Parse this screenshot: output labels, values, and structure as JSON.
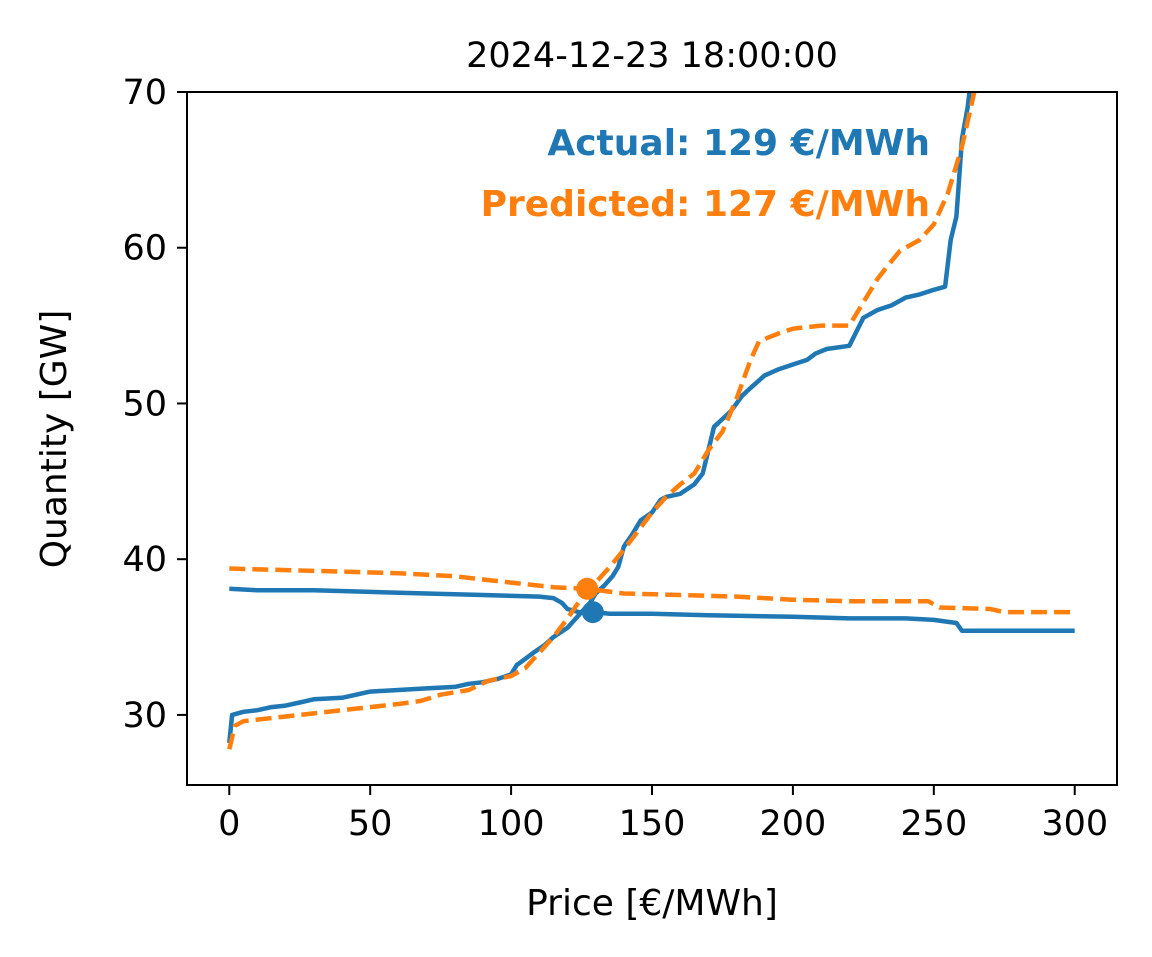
{
  "chart_data": {
    "type": "line",
    "title": "2024-12-23 18:00:00",
    "xlabel": "Price [€/MWh]",
    "ylabel": "Quantity [GW]",
    "xlim": [
      -15,
      315
    ],
    "ylim": [
      25.5,
      70
    ],
    "xticks": [
      0,
      50,
      100,
      150,
      200,
      250,
      300
    ],
    "yticks": [
      30,
      40,
      50,
      60,
      70
    ],
    "grid": false,
    "annotations": [
      {
        "text": "Actual: 129 €/MWh",
        "color": "#1f77b4"
      },
      {
        "text": "Predicted: 127 €/MWh",
        "color": "#ff7f0e"
      }
    ],
    "series": [
      {
        "role": "actual-supply",
        "color": "#1f77b4",
        "style": "solid",
        "points": [
          [
            0,
            28.2
          ],
          [
            1,
            30
          ],
          [
            5,
            30.2
          ],
          [
            10,
            30.3
          ],
          [
            15,
            30.5
          ],
          [
            20,
            30.6
          ],
          [
            25,
            30.8
          ],
          [
            30,
            31
          ],
          [
            40,
            31.1
          ],
          [
            45,
            31.3
          ],
          [
            50,
            31.5
          ],
          [
            60,
            31.6
          ],
          [
            70,
            31.7
          ],
          [
            80,
            31.8
          ],
          [
            85,
            32
          ],
          [
            90,
            32.1
          ],
          [
            95,
            32.3
          ],
          [
            100,
            32.6
          ],
          [
            102,
            33.2
          ],
          [
            105,
            33.6
          ],
          [
            108,
            34
          ],
          [
            112,
            34.5
          ],
          [
            115,
            35
          ],
          [
            120,
            35.6
          ],
          [
            123,
            36.2
          ],
          [
            126,
            36.8
          ],
          [
            128,
            37.2
          ],
          [
            130,
            37.8
          ],
          [
            133,
            38.3
          ],
          [
            136,
            38.9
          ],
          [
            138,
            39.5
          ],
          [
            140,
            40.8
          ],
          [
            143,
            41.6
          ],
          [
            146,
            42.5
          ],
          [
            150,
            43
          ],
          [
            153,
            43.8
          ],
          [
            155,
            44
          ],
          [
            160,
            44.2
          ],
          [
            165,
            44.8
          ],
          [
            168,
            45.5
          ],
          [
            170,
            47
          ],
          [
            172,
            48.5
          ],
          [
            175,
            49
          ],
          [
            178,
            49.5
          ],
          [
            182,
            50.5
          ],
          [
            185,
            51
          ],
          [
            190,
            51.8
          ],
          [
            195,
            52.2
          ],
          [
            200,
            52.5
          ],
          [
            205,
            52.8
          ],
          [
            208,
            53.2
          ],
          [
            212,
            53.5
          ],
          [
            220,
            53.7
          ],
          [
            225,
            55.5
          ],
          [
            230,
            56
          ],
          [
            235,
            56.3
          ],
          [
            240,
            56.8
          ],
          [
            245,
            57
          ],
          [
            250,
            57.3
          ],
          [
            254,
            57.5
          ],
          [
            256,
            60.5
          ],
          [
            258,
            62
          ],
          [
            260,
            67
          ],
          [
            262,
            69
          ],
          [
            264,
            72
          ]
        ]
      },
      {
        "role": "actual-demand",
        "color": "#1f77b4",
        "style": "solid",
        "points": [
          [
            0,
            38.1
          ],
          [
            10,
            38
          ],
          [
            30,
            38
          ],
          [
            50,
            37.9
          ],
          [
            70,
            37.8
          ],
          [
            90,
            37.7
          ],
          [
            110,
            37.6
          ],
          [
            115,
            37.5
          ],
          [
            118,
            37.2
          ],
          [
            120,
            36.8
          ],
          [
            124,
            36.6
          ],
          [
            129,
            36.6
          ],
          [
            135,
            36.5
          ],
          [
            150,
            36.5
          ],
          [
            170,
            36.4
          ],
          [
            200,
            36.3
          ],
          [
            220,
            36.2
          ],
          [
            240,
            36.2
          ],
          [
            250,
            36.1
          ],
          [
            258,
            35.9
          ],
          [
            260,
            35.4
          ],
          [
            280,
            35.4
          ],
          [
            300,
            35.4
          ]
        ]
      },
      {
        "role": "predicted-supply",
        "color": "#ff7f0e",
        "style": "dashed",
        "points": [
          [
            0,
            27.8
          ],
          [
            2,
            29.3
          ],
          [
            5,
            29.6
          ],
          [
            10,
            29.7
          ],
          [
            20,
            29.9
          ],
          [
            30,
            30.1
          ],
          [
            40,
            30.3
          ],
          [
            50,
            30.5
          ],
          [
            60,
            30.7
          ],
          [
            68,
            30.9
          ],
          [
            75,
            31.3
          ],
          [
            85,
            31.6
          ],
          [
            92,
            32.2
          ],
          [
            100,
            32.5
          ],
          [
            105,
            33
          ],
          [
            110,
            34
          ],
          [
            115,
            35
          ],
          [
            120,
            36.2
          ],
          [
            125,
            37.5
          ],
          [
            130,
            38.5
          ],
          [
            135,
            39.5
          ],
          [
            140,
            40.6
          ],
          [
            145,
            41.8
          ],
          [
            150,
            43
          ],
          [
            155,
            44
          ],
          [
            160,
            44.8
          ],
          [
            165,
            45.5
          ],
          [
            170,
            47
          ],
          [
            175,
            48.2
          ],
          [
            180,
            50.3
          ],
          [
            185,
            52.8
          ],
          [
            188,
            54
          ],
          [
            195,
            54.5
          ],
          [
            200,
            54.8
          ],
          [
            210,
            55
          ],
          [
            220,
            55
          ],
          [
            225,
            56.5
          ],
          [
            230,
            58
          ],
          [
            233,
            58.7
          ],
          [
            238,
            59.8
          ],
          [
            245,
            60.5
          ],
          [
            250,
            61.5
          ],
          [
            255,
            63.5
          ],
          [
            260,
            66.5
          ],
          [
            265,
            70.5
          ]
        ]
      },
      {
        "role": "predicted-demand",
        "color": "#ff7f0e",
        "style": "dashed",
        "points": [
          [
            0,
            39.4
          ],
          [
            20,
            39.3
          ],
          [
            40,
            39.2
          ],
          [
            60,
            39.1
          ],
          [
            80,
            38.9
          ],
          [
            100,
            38.5
          ],
          [
            115,
            38.2
          ],
          [
            127,
            38.1
          ],
          [
            140,
            37.8
          ],
          [
            160,
            37.7
          ],
          [
            180,
            37.6
          ],
          [
            200,
            37.4
          ],
          [
            220,
            37.3
          ],
          [
            248,
            37.3
          ],
          [
            252,
            36.9
          ],
          [
            270,
            36.8
          ],
          [
            275,
            36.6
          ],
          [
            300,
            36.6
          ]
        ]
      }
    ],
    "equilibrium_points": [
      {
        "role": "actual",
        "x": 129,
        "y": 36.6,
        "color": "#1f77b4"
      },
      {
        "role": "predicted",
        "x": 127,
        "y": 38.1,
        "color": "#ff7f0e"
      }
    ]
  }
}
